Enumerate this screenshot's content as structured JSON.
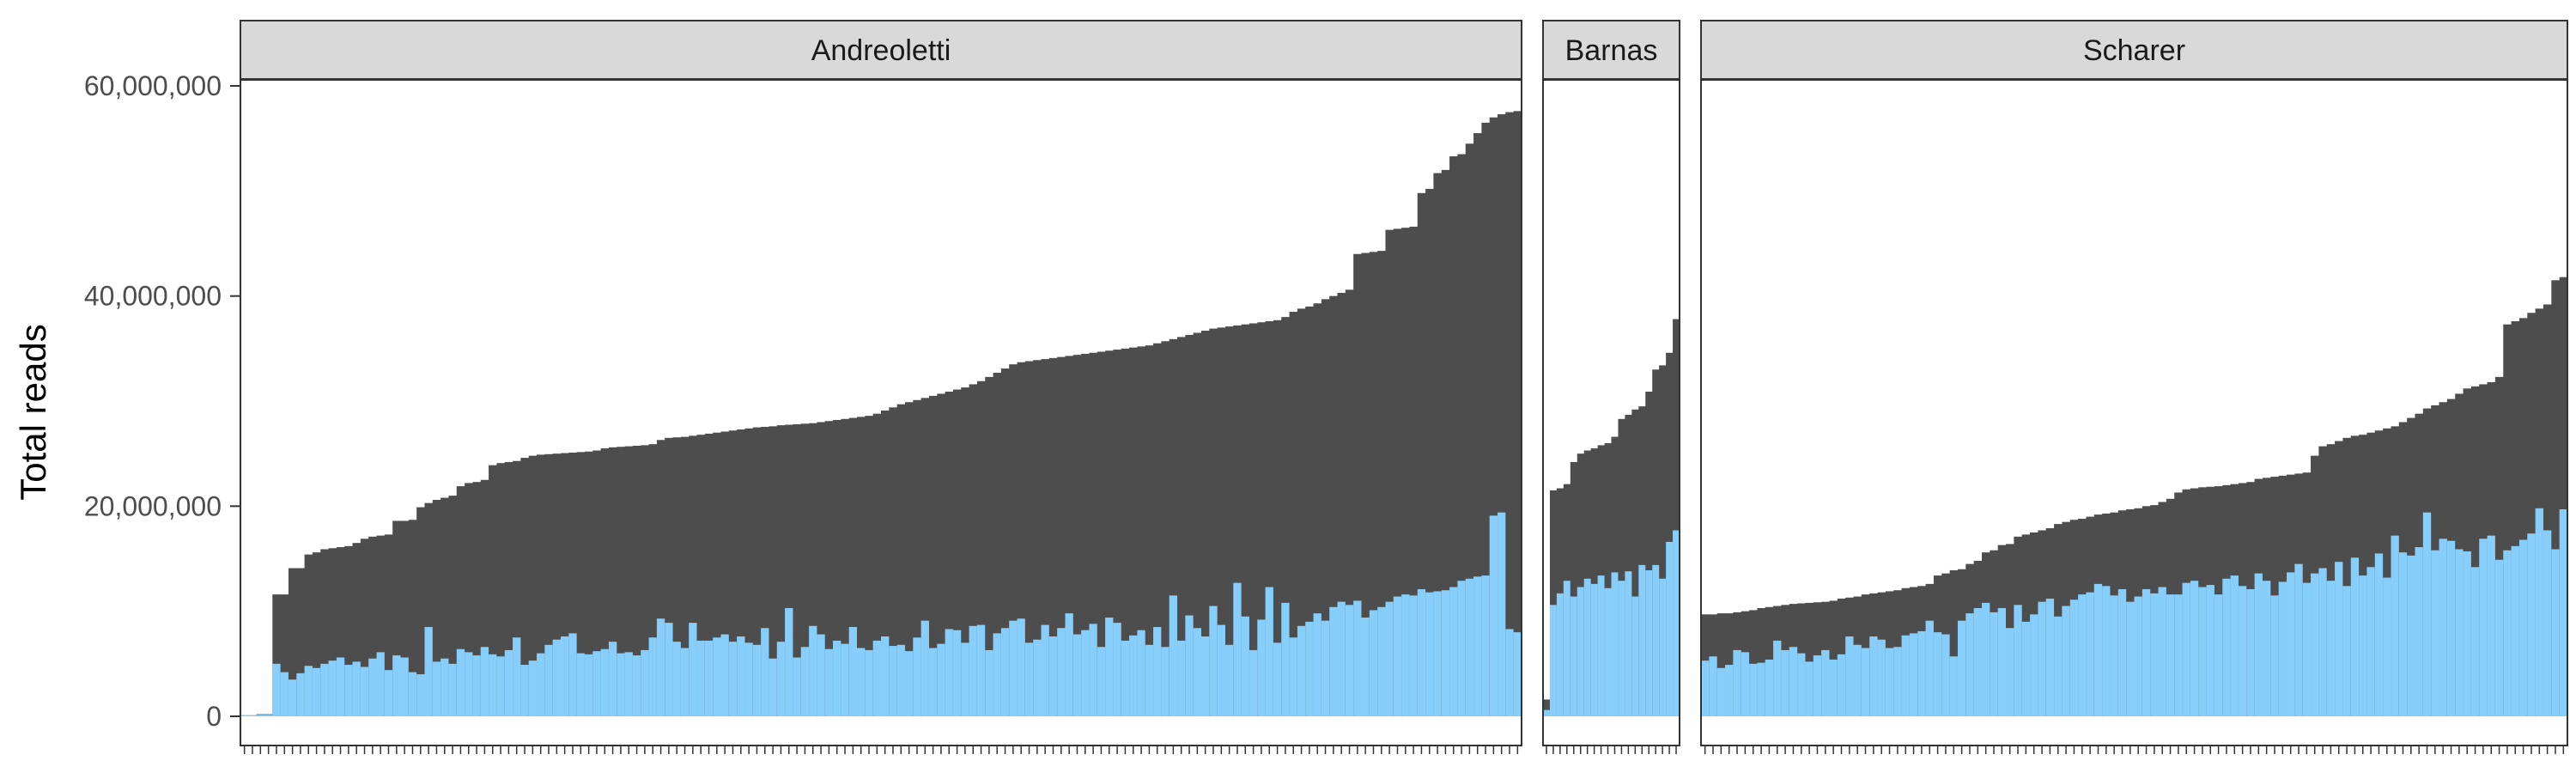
{
  "chart_data": {
    "type": "bar",
    "ylabel": "Total reads",
    "ylim": [
      0,
      61000000
    ],
    "y_ticks": [
      {
        "value": 0,
        "label": "0"
      },
      {
        "value": 20000000,
        "label": "20,000,000"
      },
      {
        "value": 40000000,
        "label": "40,000,000"
      },
      {
        "value": 60000000,
        "label": "60,000,000"
      }
    ],
    "layout": "faceted-by-study, bars sorted by total reads ascending, free x scale, shared y",
    "colors": {
      "total_reads": "#4d4d4d",
      "highlighted_reads": "#87cefa"
    },
    "facets": [
      {
        "label": "Andreoletti",
        "n_samples": 160,
        "total_reads": [
          100000,
          100000,
          200000,
          200000,
          11600000,
          11600000,
          14100000,
          14100000,
          15400000,
          15600000,
          15900000,
          16000000,
          16100000,
          16200000,
          16500000,
          16900000,
          17100000,
          17200000,
          17300000,
          18600000,
          18600000,
          18700000,
          19900000,
          20300000,
          20600000,
          20800000,
          21000000,
          21900000,
          22200000,
          22300000,
          22500000,
          23900000,
          24100000,
          24200000,
          24300000,
          24600000,
          24800000,
          24900000,
          24950000,
          25000000,
          25050000,
          25100000,
          25150000,
          25200000,
          25300000,
          25500000,
          25600000,
          25650000,
          25700000,
          25750000,
          25800000,
          25900000,
          26300000,
          26500000,
          26550000,
          26600000,
          26700000,
          26800000,
          26900000,
          27000000,
          27100000,
          27200000,
          27300000,
          27400000,
          27500000,
          27550000,
          27600000,
          27700000,
          27750000,
          27800000,
          27850000,
          27900000,
          28000000,
          28100000,
          28200000,
          28300000,
          28400000,
          28500000,
          28600000,
          28800000,
          29100000,
          29400000,
          29700000,
          29900000,
          30100000,
          30300000,
          30500000,
          30700000,
          30900000,
          31100000,
          31300000,
          31600000,
          31900000,
          32300000,
          32700000,
          33100000,
          33500000,
          33700000,
          33800000,
          33900000,
          34000000,
          34100000,
          34200000,
          34300000,
          34400000,
          34500000,
          34600000,
          34700000,
          34800000,
          34900000,
          35000000,
          35100000,
          35200000,
          35300000,
          35500000,
          35700000,
          35900000,
          36100000,
          36300000,
          36500000,
          36700000,
          36900000,
          37000000,
          37100000,
          37200000,
          37300000,
          37400000,
          37500000,
          37600000,
          37700000,
          38000000,
          38500000,
          38800000,
          39000000,
          39300000,
          39700000,
          40000000,
          40300000,
          40600000,
          44000000,
          44100000,
          44200000,
          44300000,
          46300000,
          46400000,
          46500000,
          46600000,
          49800000,
          50200000,
          51700000,
          52000000,
          53300000,
          53500000,
          54500000,
          55500000,
          56500000,
          57000000,
          57300000,
          57500000,
          57600000
        ],
        "highlighted_reads": [
          100000,
          100000,
          150000,
          150000,
          5000000,
          4200000,
          3500000,
          4100000,
          4800000,
          4600000,
          5000000,
          5300000,
          5600000,
          4900000,
          5200000,
          4700000,
          5500000,
          6100000,
          4400000,
          5800000,
          5600000,
          4200000,
          4000000,
          8500000,
          5200000,
          5500000,
          5000000,
          6400000,
          6100000,
          5800000,
          6600000,
          5900000,
          5700000,
          6300000,
          7500000,
          4900000,
          5300000,
          6000000,
          6800000,
          7300000,
          7600000,
          7900000,
          6000000,
          5900000,
          6200000,
          6400000,
          7100000,
          6000000,
          6100000,
          5800000,
          6300000,
          7500000,
          9300000,
          8900000,
          7100000,
          6500000,
          8900000,
          7200000,
          7200000,
          7500000,
          7800000,
          7100000,
          7600000,
          7000000,
          6800000,
          8400000,
          5500000,
          7100000,
          10300000,
          5600000,
          6600000,
          8600000,
          7800000,
          6400000,
          7200000,
          6900000,
          8500000,
          6500000,
          6300000,
          7200000,
          7600000,
          6700000,
          6800000,
          6200000,
          7500000,
          9100000,
          6500000,
          6900000,
          8300000,
          8200000,
          7000000,
          8600000,
          8700000,
          6300000,
          7900000,
          8400000,
          9100000,
          9300000,
          7000000,
          7300000,
          8700000,
          7600000,
          8400000,
          9800000,
          7800000,
          8200000,
          8800000,
          6600000,
          9400000,
          8900000,
          7200000,
          7700000,
          8200000,
          6800000,
          8500000,
          6600000,
          11500000,
          7200000,
          9600000,
          8400000,
          7600000,
          10500000,
          8700000,
          6800000,
          12700000,
          9500000,
          6300000,
          9200000,
          12300000,
          7000000,
          10800000,
          7500000,
          8600000,
          9000000,
          9800000,
          9100000,
          10400000,
          10900000,
          10600000,
          11000000,
          9400000,
          10100000,
          10400000,
          10900000,
          11400000,
          11600000,
          11500000,
          12100000,
          11800000,
          11900000,
          12000000,
          12300000,
          12900000,
          13100000,
          13300000,
          13400000,
          19100000,
          19400000,
          8300000,
          8000000
        ]
      },
      {
        "label": "Barnas",
        "n_samples": 20,
        "total_reads": [
          1600000,
          21500000,
          21700000,
          22100000,
          24200000,
          25000000,
          25300000,
          25500000,
          25800000,
          26000000,
          26600000,
          28300000,
          28700000,
          29200000,
          29500000,
          30900000,
          33000000,
          33400000,
          34600000,
          37800000
        ],
        "highlighted_reads": [
          600000,
          10600000,
          11700000,
          12900000,
          11400000,
          12300000,
          13100000,
          12600000,
          13400000,
          12200000,
          13700000,
          12900000,
          13800000,
          11400000,
          14400000,
          13900000,
          14400000,
          13100000,
          16600000,
          17700000
        ]
      },
      {
        "label": "Scharer",
        "n_samples": 108,
        "total_reads": [
          9700000,
          9700000,
          9800000,
          9800000,
          9900000,
          10000000,
          10100000,
          10300000,
          10400000,
          10500000,
          10600000,
          10700000,
          10750000,
          10800000,
          10850000,
          10900000,
          11000000,
          11200000,
          11300000,
          11400000,
          11600000,
          11700000,
          11800000,
          11900000,
          12000000,
          12200000,
          12300000,
          12400000,
          12600000,
          13400000,
          13600000,
          13900000,
          14000000,
          14500000,
          14800000,
          15600000,
          15800000,
          16300000,
          16400000,
          17100000,
          17300000,
          17500000,
          17700000,
          17900000,
          18300000,
          18500000,
          18700000,
          18800000,
          19000000,
          19200000,
          19300000,
          19400000,
          19600000,
          19700000,
          19800000,
          20000000,
          20100000,
          20400000,
          20700000,
          21300000,
          21600000,
          21700000,
          21800000,
          21850000,
          21900000,
          22000000,
          22100000,
          22200000,
          22300000,
          22600000,
          22700000,
          22800000,
          22900000,
          23000000,
          23100000,
          23200000,
          24800000,
          25700000,
          25900000,
          26200000,
          26500000,
          26700000,
          26800000,
          27000000,
          27200000,
          27400000,
          27600000,
          28000000,
          28400000,
          28800000,
          29300000,
          29600000,
          29900000,
          30200000,
          30700000,
          31200000,
          31400000,
          31600000,
          31800000,
          32300000,
          37300000,
          37600000,
          37900000,
          38400000,
          38800000,
          39200000,
          41500000,
          41800000
        ],
        "highlighted_reads": [
          5300000,
          5700000,
          4600000,
          4900000,
          6300000,
          6100000,
          5000000,
          5100000,
          5400000,
          7200000,
          6300000,
          6600000,
          6000000,
          5200000,
          5800000,
          6300000,
          5400000,
          5900000,
          7600000,
          6800000,
          6500000,
          7600000,
          7300000,
          6500000,
          6600000,
          7700000,
          7900000,
          8100000,
          9100000,
          8000000,
          7800000,
          5700000,
          9100000,
          9800000,
          10300000,
          10800000,
          9900000,
          10300000,
          8400000,
          10600000,
          9000000,
          9700000,
          10900000,
          11200000,
          9500000,
          10500000,
          11100000,
          11600000,
          11800000,
          12600000,
          12400000,
          11500000,
          12100000,
          10900000,
          11400000,
          12100000,
          11700000,
          12300000,
          11600000,
          11600000,
          12700000,
          12900000,
          12300000,
          12500000,
          11600000,
          13100000,
          13400000,
          12400000,
          12100000,
          13600000,
          12900000,
          11500000,
          12800000,
          13700000,
          14500000,
          12700000,
          13600000,
          14100000,
          12900000,
          14700000,
          12400000,
          15100000,
          13400000,
          14200000,
          15500000,
          13200000,
          17200000,
          15600000,
          15300000,
          16100000,
          19400000,
          15800000,
          16900000,
          16700000,
          15900000,
          15700000,
          14200000,
          16900000,
          17200000,
          14900000,
          15800000,
          16200000,
          16800000,
          17400000,
          19800000,
          17700000,
          15900000,
          19700000
        ]
      }
    ]
  }
}
